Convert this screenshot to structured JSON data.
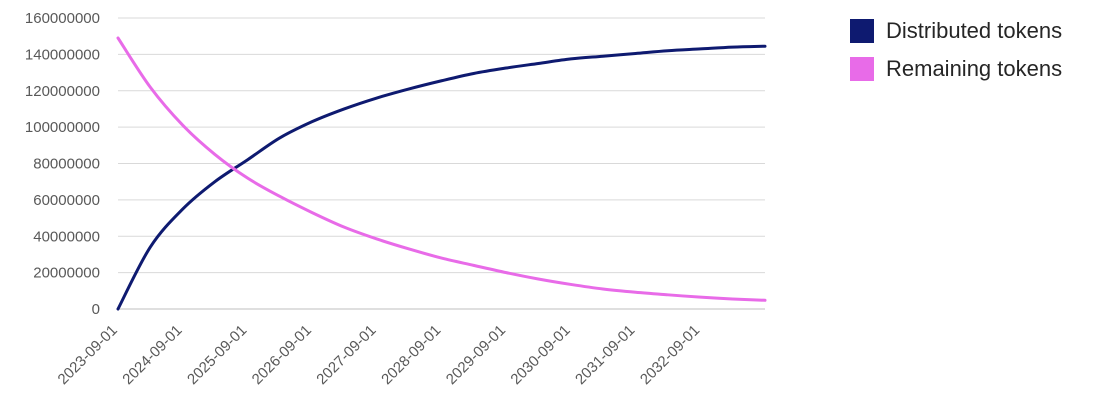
{
  "chart_data": {
    "type": "line",
    "title": "",
    "xlabel": "",
    "ylabel": "",
    "ylim": [
      0,
      160000000
    ],
    "y_ticks": [
      "0",
      "20000000",
      "40000000",
      "60000000",
      "80000000",
      "100000000",
      "120000000",
      "140000000",
      "160000000"
    ],
    "x_ticks": [
      "2023-09-01",
      "2024-09-01",
      "2025-09-01",
      "2026-09-01",
      "2027-09-01",
      "2028-09-01",
      "2029-09-01",
      "2030-09-01",
      "2031-09-01",
      "2032-09-01"
    ],
    "x": [
      "2023-09-01",
      "2024-03-01",
      "2024-09-01",
      "2025-03-01",
      "2025-09-01",
      "2026-03-01",
      "2026-09-01",
      "2027-03-01",
      "2027-09-01",
      "2028-03-01",
      "2028-09-01",
      "2029-03-01",
      "2029-09-01",
      "2030-03-01",
      "2030-09-01",
      "2031-03-01",
      "2031-09-01",
      "2032-03-01",
      "2032-09-01",
      "2033-03-01",
      "2033-09-01"
    ],
    "grid": true,
    "legend_position": "top-right",
    "series": [
      {
        "name": "Distributed tokens",
        "color": "#0e1a70",
        "values": [
          0,
          34000000,
          55000000,
          70000000,
          82000000,
          94000000,
          103000000,
          110000000,
          116000000,
          121000000,
          125500000,
          129500000,
          132500000,
          135000000,
          137500000,
          139000000,
          140500000,
          142000000,
          143000000,
          144000000,
          144500000
        ]
      },
      {
        "name": "Remaining tokens",
        "color": "#e86be8",
        "values": [
          149000000,
          122000000,
          101000000,
          85000000,
          72000000,
          62000000,
          53000000,
          45000000,
          38500000,
          33000000,
          28000000,
          24000000,
          20000000,
          16500000,
          13500000,
          11000000,
          9200000,
          7800000,
          6500000,
          5500000,
          4800000
        ]
      }
    ]
  }
}
